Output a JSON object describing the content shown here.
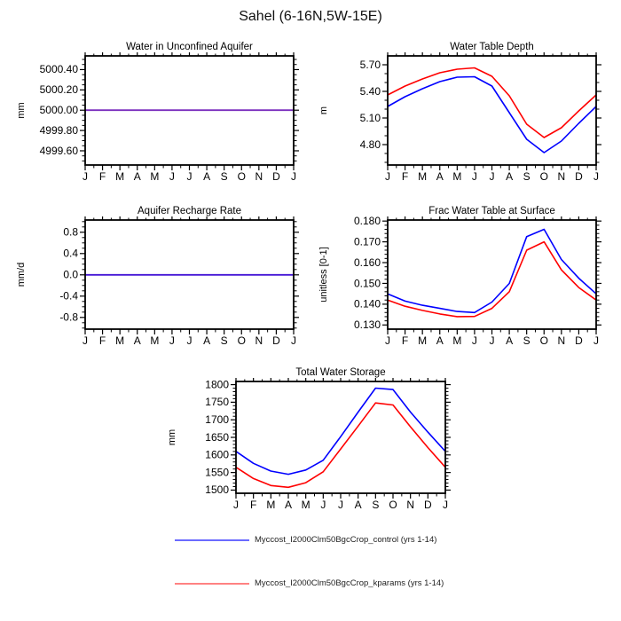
{
  "page_title": "Sahel (6-16N,5W-15E)",
  "months": [
    "J",
    "F",
    "M",
    "A",
    "M",
    "J",
    "J",
    "A",
    "S",
    "O",
    "N",
    "D",
    "J"
  ],
  "legend": {
    "items": [
      {
        "label": "Myccost_I2000Clm50BgcCrop_control (yrs 1-14)",
        "color": "#6b6bff",
        "series": "control"
      },
      {
        "label": "Myccost_I2000Clm50BgcCrop_kparams (yrs 1-14)",
        "color": "#ff8282",
        "series": "kparams"
      }
    ]
  },
  "colors": {
    "control_line": "#0000ff",
    "kparams_line": "#ff0000",
    "aquifer_overlap": "#7b2fbe",
    "recharge_overlap": "#4617d6",
    "axis": "#000000"
  },
  "chart_data": [
    {
      "id": "water-in-unconfined-aquifer",
      "type": "line",
      "title": "Water in Unconfined Aquifer",
      "ylabel": "mm",
      "categories": [
        "J",
        "F",
        "M",
        "A",
        "M",
        "J",
        "J",
        "A",
        "S",
        "O",
        "N",
        "D",
        "J"
      ],
      "ylim": [
        4999.46,
        5000.535
      ],
      "yticks": {
        "values": [
          4999.6,
          4999.8,
          5000.0,
          5000.2,
          5000.4
        ],
        "labels": [
          "4999.60",
          "4999.80",
          "5000.00",
          "5000.20",
          "5000.40"
        ]
      },
      "yminor": 3,
      "overlap_color": "#7b2fbe",
      "series": [
        {
          "name": "Myccost_I2000Clm50BgcCrop_control (yrs 1-14)",
          "color": "#0000ff",
          "values": [
            5000,
            5000,
            5000,
            5000,
            5000,
            5000,
            5000,
            5000,
            5000,
            5000,
            5000,
            5000,
            5000
          ]
        },
        {
          "name": "Myccost_I2000Clm50BgcCrop_kparams (yrs 1-14)",
          "color": "#ff0000",
          "values": [
            5000,
            5000,
            5000,
            5000,
            5000,
            5000,
            5000,
            5000,
            5000,
            5000,
            5000,
            5000,
            5000
          ]
        }
      ]
    },
    {
      "id": "water-table-depth",
      "type": "line",
      "title": "Water Table Depth",
      "ylabel": "m",
      "categories": [
        "J",
        "F",
        "M",
        "A",
        "M",
        "J",
        "J",
        "A",
        "S",
        "O",
        "N",
        "D",
        "J"
      ],
      "ylim": [
        4.57,
        5.8
      ],
      "yticks": {
        "values": [
          4.8,
          5.1,
          5.4,
          5.7
        ],
        "labels": [
          "4.80",
          "5.10",
          "5.40",
          "5.70"
        ]
      },
      "yminor": 2,
      "series": [
        {
          "name": "Myccost_I2000Clm50BgcCrop_control (yrs 1-14)",
          "color": "#0000ff",
          "values": [
            5.23,
            5.34,
            5.43,
            5.51,
            5.56,
            5.565,
            5.46,
            5.16,
            4.86,
            4.71,
            4.84,
            5.04,
            5.23
          ]
        },
        {
          "name": "Myccost_I2000Clm50BgcCrop_kparams (yrs 1-14)",
          "color": "#ff0000",
          "values": [
            5.36,
            5.46,
            5.54,
            5.61,
            5.65,
            5.665,
            5.57,
            5.35,
            5.03,
            4.88,
            4.99,
            5.18,
            5.36
          ]
        }
      ]
    },
    {
      "id": "aquifer-recharge-rate",
      "type": "line",
      "title": "Aquifer Recharge Rate",
      "ylabel": "mm/d",
      "categories": [
        "J",
        "F",
        "M",
        "A",
        "M",
        "J",
        "J",
        "A",
        "S",
        "O",
        "N",
        "D",
        "J"
      ],
      "ylim": [
        -1.02,
        1.03
      ],
      "yticks": {
        "values": [
          -0.8,
          -0.4,
          0.0,
          0.4,
          0.8
        ],
        "labels": [
          "-0.8",
          "-0.4",
          "0.0",
          "0.4",
          "0.8"
        ]
      },
      "yminor": 3,
      "overlap_color": "#4617d6",
      "series": [
        {
          "name": "Myccost_I2000Clm50BgcCrop_control (yrs 1-14)",
          "color": "#0000ff",
          "values": [
            0,
            0,
            0,
            0,
            0,
            0,
            0,
            0,
            0,
            0,
            0,
            0,
            0
          ]
        },
        {
          "name": "Myccost_I2000Clm50BgcCrop_kparams (yrs 1-14)",
          "color": "#ff0000",
          "values": [
            0,
            0,
            0,
            0,
            0,
            0,
            0,
            0,
            0,
            0,
            0,
            0,
            0
          ]
        }
      ]
    },
    {
      "id": "frac-water-table-at-surface",
      "type": "line",
      "title": "Frac Water Table at Surface",
      "ylabel": "unitless [0-1]",
      "categories": [
        "J",
        "F",
        "M",
        "A",
        "M",
        "J",
        "J",
        "A",
        "S",
        "O",
        "N",
        "D",
        "J"
      ],
      "ylim": [
        0.128,
        0.1805
      ],
      "yticks": {
        "values": [
          0.13,
          0.14,
          0.15,
          0.16,
          0.17,
          0.18
        ],
        "labels": [
          "0.130",
          "0.140",
          "0.150",
          "0.160",
          "0.170",
          "0.180"
        ]
      },
      "yminor": 4,
      "series": [
        {
          "name": "Myccost_I2000Clm50BgcCrop_control (yrs 1-14)",
          "color": "#0000ff",
          "values": [
            0.145,
            0.1415,
            0.1395,
            0.138,
            0.1365,
            0.136,
            0.141,
            0.15,
            0.1725,
            0.176,
            0.1615,
            0.1525,
            0.145
          ]
        },
        {
          "name": "Myccost_I2000Clm50BgcCrop_kparams (yrs 1-14)",
          "color": "#ff0000",
          "values": [
            0.142,
            0.139,
            0.137,
            0.1353,
            0.134,
            0.1341,
            0.138,
            0.146,
            0.166,
            0.17,
            0.1565,
            0.148,
            0.142
          ]
        }
      ]
    },
    {
      "id": "total-water-storage",
      "type": "line",
      "title": "Total Water Storage",
      "ylabel": "mm",
      "categories": [
        "J",
        "F",
        "M",
        "A",
        "M",
        "J",
        "J",
        "A",
        "S",
        "O",
        "N",
        "D",
        "J"
      ],
      "ylim": [
        1491,
        1809
      ],
      "yticks": {
        "values": [
          1500,
          1550,
          1600,
          1650,
          1700,
          1750,
          1800
        ],
        "labels": [
          "1500",
          "1550",
          "1600",
          "1650",
          "1700",
          "1750",
          "1800"
        ]
      },
      "yminor": 4,
      "series": [
        {
          "name": "Myccost_I2000Clm50BgcCrop_control (yrs 1-14)",
          "color": "#0000ff",
          "values": [
            1610,
            1576,
            1554,
            1545,
            1557,
            1585,
            1652,
            1722,
            1790,
            1786,
            1722,
            1665,
            1610
          ]
        },
        {
          "name": "Myccost_I2000Clm50BgcCrop_kparams (yrs 1-14)",
          "color": "#ff0000",
          "values": [
            1565,
            1533,
            1513,
            1508,
            1521,
            1552,
            1617,
            1682,
            1748,
            1742,
            1680,
            1621,
            1565
          ]
        }
      ]
    }
  ]
}
